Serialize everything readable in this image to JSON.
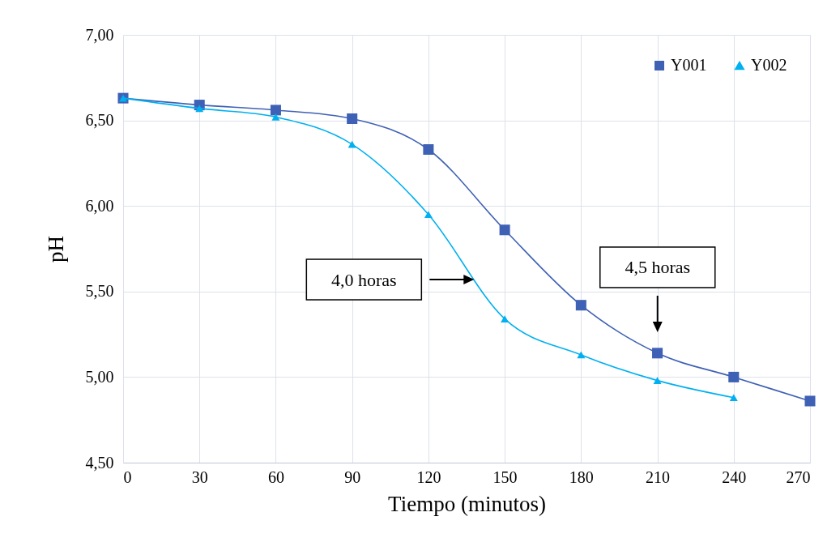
{
  "chart_data": {
    "type": "line",
    "xlabel": "Tiempo (minutos)",
    "ylabel": "pH",
    "x": [
      0,
      30,
      60,
      90,
      120,
      150,
      180,
      210,
      240,
      270
    ],
    "series": [
      {
        "name": "Y001",
        "color": "#3f61b5",
        "marker": "square",
        "values": [
          6.63,
          6.59,
          6.56,
          6.51,
          6.33,
          5.86,
          5.42,
          5.14,
          5.0,
          4.86
        ]
      },
      {
        "name": "Y002",
        "color": "#00b0f0",
        "marker": "triangle",
        "values": [
          6.63,
          6.57,
          6.52,
          6.36,
          5.95,
          5.34,
          5.13,
          4.98,
          4.88,
          null
        ]
      }
    ],
    "xlim": [
      0,
      270
    ],
    "xticks": [
      0,
      30,
      60,
      90,
      120,
      150,
      180,
      210,
      240,
      270
    ],
    "ylim": [
      4.5,
      7
    ],
    "yticks": [
      {
        "value": 4.5,
        "label": "4,50"
      },
      {
        "value": 5,
        "label": "5,00"
      },
      {
        "value": 5.5,
        "label": "5,50"
      },
      {
        "value": 6,
        "label": "6,00"
      },
      {
        "value": 6.5,
        "label": "6,50"
      },
      {
        "value": 7,
        "label": "7,00"
      }
    ],
    "annotations": [
      "4,0 horas",
      "4,5 horas"
    ],
    "grid": true,
    "legend": "top right"
  }
}
